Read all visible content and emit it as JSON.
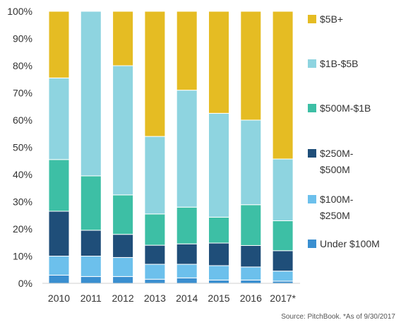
{
  "chart_data": {
    "type": "bar",
    "stacked": true,
    "categories": [
      "2010",
      "2011",
      "2012",
      "2013",
      "2014",
      "2015",
      "2016",
      "2017*"
    ],
    "y_ticks": [
      "0%",
      "10%",
      "20%",
      "30%",
      "40%",
      "50%",
      "60%",
      "70%",
      "80%",
      "90%",
      "100%"
    ],
    "ylim": [
      0,
      100
    ],
    "grid": false,
    "legend_position": "right",
    "series": [
      {
        "name": "Under $100M",
        "color": "#3a8fd0",
        "values": [
          3.0,
          2.5,
          2.5,
          1.5,
          2.0,
          1.2,
          1.2,
          0.8
        ]
      },
      {
        "name": "$100M-$250M",
        "color": "#6cc0ec",
        "values": [
          7.0,
          7.5,
          7.0,
          5.5,
          5.0,
          5.3,
          4.8,
          3.7
        ]
      },
      {
        "name": "$250M-$500M",
        "color": "#1f4e79",
        "values": [
          16.5,
          9.5,
          8.5,
          7.0,
          7.5,
          8.3,
          7.9,
          7.5
        ]
      },
      {
        "name": "$500M-$1B",
        "color": "#3dbfa5",
        "values": [
          19.0,
          20.0,
          14.5,
          11.5,
          13.5,
          9.5,
          15.0,
          11.0
        ]
      },
      {
        "name": "$1B-$5B",
        "color": "#8ed4e0",
        "values": [
          30.0,
          60.5,
          47.5,
          28.5,
          43.0,
          38.2,
          31.1,
          22.7
        ]
      },
      {
        "name": "$5B+",
        "color": "#e5bc23",
        "values": [
          24.5,
          0.0,
          20.0,
          46.0,
          29.0,
          37.5,
          40.0,
          54.3
        ]
      }
    ],
    "legend": [
      {
        "lines": [
          "$5B+"
        ],
        "color": "#e5bc23"
      },
      {
        "lines": [
          "$1B-$5B"
        ],
        "color": "#8ed4e0"
      },
      {
        "lines": [
          "$500M-$1B"
        ],
        "color": "#3dbfa5"
      },
      {
        "lines": [
          "$250M-",
          "$500M"
        ],
        "color": "#1f4e79"
      },
      {
        "lines": [
          "$100M-",
          "$250M"
        ],
        "color": "#6cc0ec"
      },
      {
        "lines": [
          "Under $100M"
        ],
        "color": "#3a8fd0"
      }
    ],
    "source_note": "Source: PitchBook. *As of 9/30/2017"
  }
}
